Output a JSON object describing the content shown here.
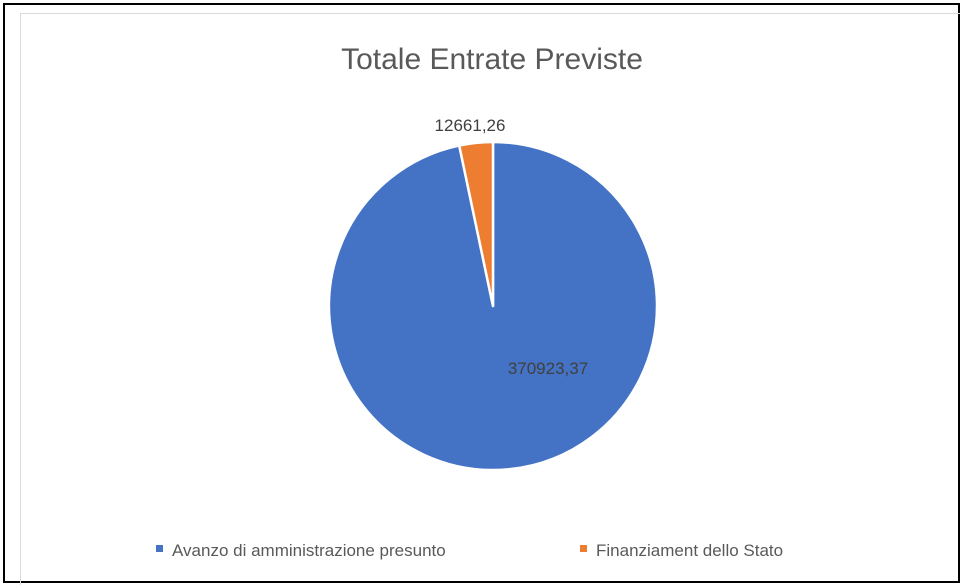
{
  "chart_data": {
    "type": "pie",
    "title": "Totale Entrate Previste",
    "categories": [
      "Avanzo di amministrazione presunto",
      "Finanziament dello Stato"
    ],
    "values": [
      370923.37,
      12661.26
    ],
    "data_labels": [
      "370923,37",
      "12661,26"
    ],
    "colors": [
      "#4472c4",
      "#ed7d31"
    ],
    "legend_position": "bottom"
  }
}
